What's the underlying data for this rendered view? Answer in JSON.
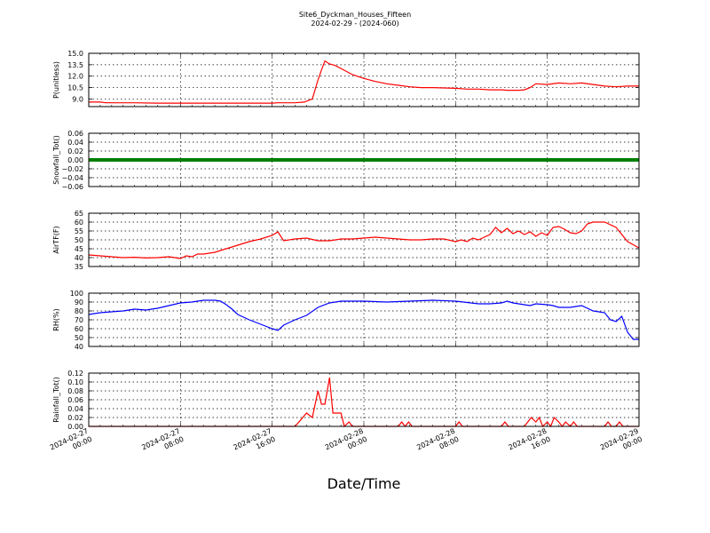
{
  "title_line1": "Site6_Dyckman_Houses_Fifteen",
  "title_line2": "2024-02-29 - (2024-060)",
  "xlabel": "Date/Time",
  "x_tick_labels": [
    [
      "2024-02-27",
      "00:00"
    ],
    [
      "2024-02-27",
      "08:00"
    ],
    [
      "2024-02-27",
      "16:00"
    ],
    [
      "2024-02-28",
      "00:00"
    ],
    [
      "2024-02-28",
      "08:00"
    ],
    [
      "2024-02-28",
      "16:00"
    ],
    [
      "2024-02-29",
      "00:00"
    ]
  ],
  "chart_data": [
    {
      "type": "line",
      "ylabel": "P(unitless)",
      "ylim": [
        8.0,
        15.0
      ],
      "yticks": [
        "15.0",
        "13.5",
        "12.0",
        "10.5",
        "9.0"
      ],
      "grid": true,
      "x_hours": [
        0,
        1,
        2,
        3,
        6,
        10,
        14,
        17,
        18,
        19,
        19.5,
        20,
        20.3,
        20.6,
        21,
        21.5,
        22,
        23,
        24,
        26,
        28,
        30,
        32,
        34,
        36,
        38,
        40,
        42,
        44,
        36.5,
        37.5,
        38.5
      ],
      "series": [
        {
          "color": "#ff0000",
          "x": [
            0,
            1,
            1.5,
            2,
            4,
            6,
            8,
            10,
            12,
            14,
            16,
            16.5,
            17,
            18,
            18.8,
            19.5,
            20,
            20.3,
            20.6,
            21,
            21.5,
            22,
            23,
            24,
            25,
            26,
            27,
            28,
            29,
            30,
            31,
            32,
            33,
            34,
            35,
            36,
            36.5,
            37,
            37.5,
            38,
            38.5,
            39,
            40,
            41,
            42,
            43,
            44,
            45,
            46,
            47,
            48
          ],
          "values": [
            8.6,
            8.6,
            8.5,
            8.5,
            8.5,
            8.45,
            8.45,
            8.45,
            8.45,
            8.45,
            8.45,
            8.5,
            8.5,
            8.5,
            8.6,
            9.0,
            11.5,
            12.8,
            14.0,
            13.6,
            13.4,
            13.0,
            12.2,
            11.7,
            11.3,
            11.0,
            10.8,
            10.6,
            10.5,
            10.5,
            10.45,
            10.4,
            10.3,
            10.3,
            10.2,
            10.2,
            10.15,
            10.15,
            10.15,
            10.2,
            10.5,
            11.0,
            10.9,
            11.1,
            11.0,
            11.1,
            10.9,
            10.7,
            10.6,
            10.7,
            10.7
          ]
        }
      ]
    },
    {
      "type": "line",
      "ylabel": "Snowfall_Tot()",
      "ylim": [
        -0.06,
        0.06
      ],
      "yticks": [
        "0.06",
        "0.04",
        "0.02",
        "0.00",
        "−0.02",
        "−0.04",
        "−0.06"
      ],
      "grid": true,
      "series": [
        {
          "color": "#007f00",
          "x": [
            0,
            48
          ],
          "values": [
            0.0,
            0.0
          ]
        }
      ]
    },
    {
      "type": "line",
      "ylabel": "AirTF(F)",
      "ylim": [
        35,
        65
      ],
      "yticks": [
        "65",
        "60",
        "55",
        "50",
        "45",
        "40",
        "35"
      ],
      "grid": true,
      "series": [
        {
          "color": "#ff0000",
          "x": [
            0,
            1,
            2,
            3,
            4,
            5,
            6,
            7,
            7.5,
            8,
            8.5,
            9,
            9.5,
            10,
            11,
            12,
            13,
            14,
            15,
            16,
            16.5,
            17,
            18,
            19,
            20,
            21,
            22,
            23,
            24,
            25,
            26,
            27,
            28,
            29,
            30,
            31,
            32,
            32.5,
            33,
            33.5,
            34,
            34.5,
            35,
            35.5,
            36,
            36.5,
            37,
            37.5,
            38,
            38.5,
            39,
            39.5,
            40,
            40.5,
            41,
            41.5,
            42,
            42.5,
            43,
            43.5,
            44,
            45,
            46,
            47,
            48
          ],
          "values": [
            41.5,
            41.0,
            40.5,
            40.0,
            40.2,
            39.8,
            40.0,
            40.5,
            40.0,
            39.5,
            41.0,
            40.5,
            42.0,
            42.0,
            43.0,
            45.0,
            47.0,
            49.0,
            50.5,
            52.5,
            54.5,
            49.5,
            50.5,
            51.0,
            49.5,
            49.5,
            50.5,
            50.5,
            51.0,
            51.5,
            51.0,
            50.5,
            50.0,
            50.0,
            50.5,
            50.5,
            49.0,
            50.0,
            49.0,
            51.0,
            50.0,
            51.5,
            53.0,
            57.0,
            54.0,
            56.5,
            53.5,
            55.0,
            53.0,
            54.5,
            52.0,
            54.0,
            52.5,
            57.0,
            57.5,
            56.0,
            54.0,
            53.5,
            55.0,
            59.0,
            60.0,
            60.0,
            57.0,
            49.0,
            45.5
          ]
        }
      ]
    },
    {
      "type": "line",
      "ylabel": "RH(%)",
      "ylim": [
        40,
        100
      ],
      "yticks": [
        "100",
        "90",
        "80",
        "70",
        "60",
        "50",
        "40"
      ],
      "grid": true,
      "series": [
        {
          "color": "#0000ff",
          "x": [
            0,
            1,
            2,
            3,
            4,
            5,
            6,
            7,
            8,
            9,
            10,
            11,
            11.5,
            12,
            12.5,
            13,
            14,
            15,
            16,
            16.5,
            17,
            18,
            19,
            20,
            21,
            22,
            24,
            26,
            28,
            30,
            32,
            34,
            35,
            36,
            36.5,
            37,
            37.5,
            38,
            38.5,
            39,
            40,
            40.5,
            41,
            42,
            43,
            44,
            44.5,
            45,
            45.5,
            46,
            46.5,
            47,
            47.5,
            48
          ],
          "values": [
            76,
            78,
            79,
            80,
            82,
            81,
            83,
            86,
            89,
            90,
            92,
            92,
            91,
            87,
            82,
            76,
            70,
            65,
            60,
            58,
            64,
            70,
            75,
            84,
            89,
            91,
            91,
            90,
            91,
            92,
            91,
            88,
            88,
            89,
            91,
            89,
            88,
            87,
            86,
            88,
            87,
            86,
            84,
            84,
            86,
            80,
            79,
            78,
            70,
            68,
            74,
            56,
            48,
            48
          ]
        }
      ]
    },
    {
      "type": "line",
      "ylabel": "Rainfall_Tot()",
      "ylim": [
        0.0,
        0.12
      ],
      "yticks": [
        "0.12",
        "0.10",
        "0.08",
        "0.06",
        "0.04",
        "0.02",
        "0.00"
      ],
      "grid": true,
      "series": [
        {
          "color": "#ff0000",
          "x": [
            0,
            18,
            19,
            19.5,
            20,
            20.3,
            20.6,
            21,
            21.3,
            21.6,
            22,
            22.3,
            22.7,
            23,
            27,
            27.3,
            27.6,
            27.9,
            28.2,
            32,
            32.3,
            32.6,
            36,
            36.3,
            36.6,
            38,
            38.3,
            38.6,
            39,
            39.3,
            39.6,
            40,
            40.3,
            40.6,
            41,
            41.3,
            41.6,
            42,
            42.3,
            42.6,
            45,
            45.3,
            45.6,
            46,
            46.3,
            46.6,
            48
          ],
          "values": [
            0,
            0,
            0.03,
            0.02,
            0.08,
            0.05,
            0.05,
            0.11,
            0.03,
            0.03,
            0.03,
            0,
            0.01,
            0,
            0,
            0.01,
            0,
            0.01,
            0,
            0,
            0.01,
            0,
            0,
            0.01,
            0,
            0,
            0.01,
            0.02,
            0.01,
            0.02,
            0,
            0.01,
            0,
            0.02,
            0.01,
            0,
            0.01,
            0,
            0.01,
            0,
            0,
            0.01,
            0,
            0,
            0.01,
            0,
            0
          ]
        }
      ]
    }
  ]
}
